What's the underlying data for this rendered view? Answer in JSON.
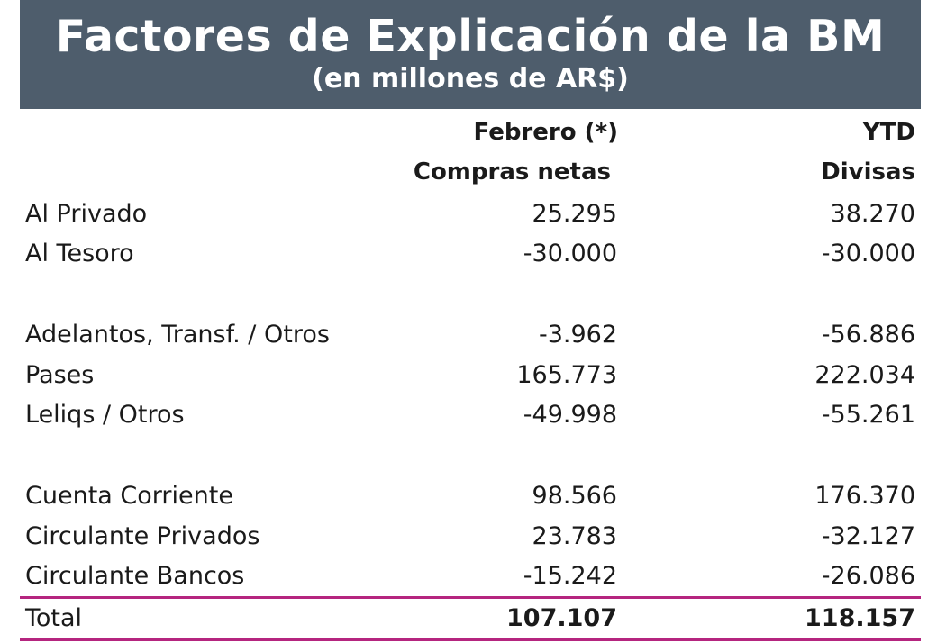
{
  "chart_data": {
    "type": "table",
    "title": "Factores de Explicación de la BM",
    "subtitle": "(en millones de AR$)",
    "columns": [
      {
        "line1": "Febrero  (*)",
        "line2": "Compras netas"
      },
      {
        "line1": "YTD",
        "line2": "Divisas"
      }
    ],
    "rows": [
      {
        "label": "Al Privado",
        "values": [
          "25.295",
          "38.270"
        ]
      },
      {
        "label": "Al Tesoro",
        "values": [
          "-30.000",
          "-30.000"
        ]
      },
      {
        "label": "Adelantos, Transf. / Otros",
        "values": [
          "-3.962",
          "-56.886"
        ]
      },
      {
        "label": "Pases",
        "values": [
          "165.773",
          "222.034"
        ]
      },
      {
        "label": "Leliqs / Otros",
        "values": [
          "-49.998",
          "-55.261"
        ]
      },
      {
        "label": "Cuenta Corriente",
        "values": [
          "98.566",
          "176.370"
        ]
      },
      {
        "label": "Circulante Privados",
        "values": [
          "23.783",
          "-32.127"
        ]
      },
      {
        "label": "Circulante Bancos",
        "values": [
          "-15.242",
          "-26.086"
        ]
      }
    ],
    "total": {
      "label": "Total",
      "values": [
        "107.107",
        "118.157"
      ]
    },
    "colors": {
      "banner": "#4e5d6c",
      "rule": "#b5257f"
    }
  }
}
